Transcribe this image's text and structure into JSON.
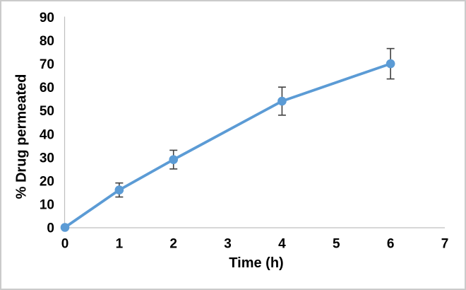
{
  "chart_data": {
    "type": "line",
    "title": "",
    "xlabel": "Time (h)",
    "ylabel": "% Drug permeated",
    "x": [
      0,
      1,
      2,
      4,
      6
    ],
    "values": [
      0,
      16,
      29,
      54,
      70
    ],
    "error_bars": [
      0,
      3,
      4,
      6,
      6.5
    ],
    "xlim": [
      0,
      7
    ],
    "ylim": [
      0,
      90
    ],
    "x_ticks": [
      0,
      1,
      2,
      3,
      4,
      5,
      6,
      7
    ],
    "y_ticks": [
      0,
      10,
      20,
      30,
      40,
      50,
      60,
      70,
      80,
      90
    ],
    "grid": false,
    "legend": "none",
    "marker_style": "circle",
    "colors": {
      "series": "#5B9BD5",
      "marker": "#5B9BD5",
      "error_bar": "#404040",
      "axis_line": "#BFBFBF",
      "text": "#000000",
      "background": "#FFFFFF",
      "frame_border": "#CBCBCB"
    }
  }
}
